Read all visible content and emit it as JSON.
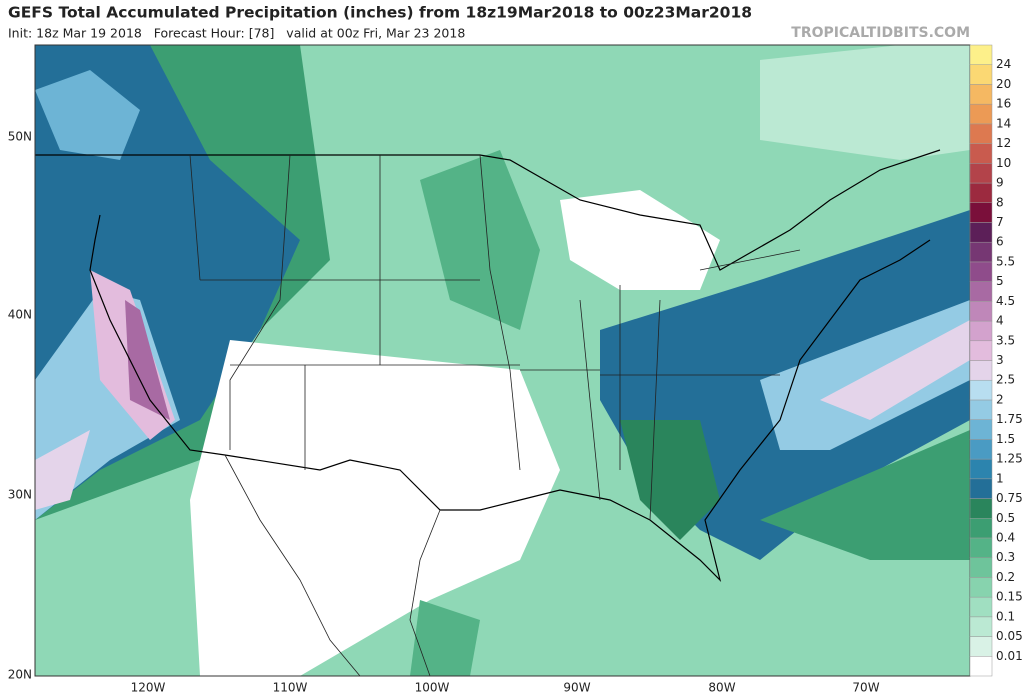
{
  "header": {
    "title": "GEFS Total Accumulated Precipitation (inches) from 18z19Mar2018 to 00z23Mar2018",
    "subtitle": "Init: 18z Mar 19 2018   Forecast Hour: [78]   valid at 00z Fri, Mar 23 2018",
    "site": "TROPICALTIDBITS.COM"
  },
  "colorbar": {
    "labels": [
      "0.01",
      "0.05",
      "0.1",
      "0.15",
      "0.2",
      "0.3",
      "0.4",
      "0.5",
      "0.75",
      "1",
      "1.25",
      "1.5",
      "1.75",
      "2",
      "2.5",
      "3",
      "3.5",
      "4",
      "4.5",
      "5",
      "5.5",
      "6",
      "7",
      "8",
      "9",
      "10",
      "12",
      "14",
      "16",
      "20",
      "24"
    ],
    "colors": [
      "#ffffff",
      "#d9f2e6",
      "#bbe9d3",
      "#a0dfc1",
      "#87d3ae",
      "#6ec49b",
      "#54b387",
      "#3c9e72",
      "#2a855c",
      "#236f98",
      "#2c84ae",
      "#4a9bc3",
      "#6db4d5",
      "#94cbe4",
      "#b8def0",
      "#e4d4ea",
      "#e3bcdd",
      "#d3a2cd",
      "#bf87b9",
      "#a86aa3",
      "#8f4c8b",
      "#763773",
      "#5c1f58",
      "#7a0f3a",
      "#9c2a3f",
      "#b3434a",
      "#c95b4e",
      "#dd7950",
      "#ec9a55",
      "#f5b862",
      "#fbd873",
      "#fdf08a"
    ]
  },
  "map": {
    "lat_labels": [
      "50N",
      "40N",
      "30N",
      "20N"
    ],
    "lon_labels": [
      "120W",
      "110W",
      "100W",
      "90W",
      "80W",
      "70W"
    ]
  }
}
